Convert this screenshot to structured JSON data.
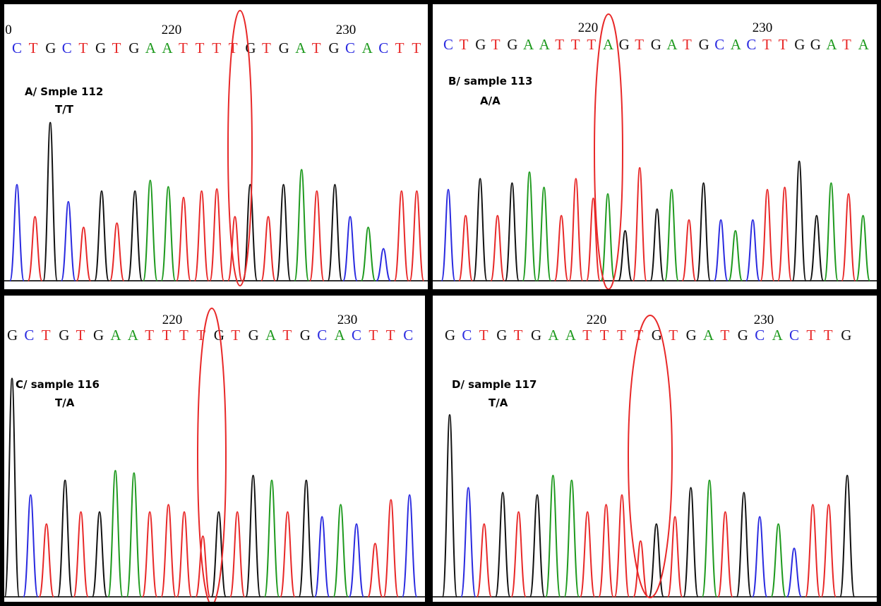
{
  "panels": [
    {
      "label": "A/ Smple 112",
      "genotype": "T/T",
      "positions": [
        "0",
        "220",
        "230"
      ],
      "sequence": [
        "C",
        "T",
        "G",
        "C",
        "T",
        "G",
        "T",
        "G",
        "A",
        "A",
        "T",
        "T",
        "T",
        "T",
        "G",
        "T",
        "G",
        "A",
        "T",
        "G",
        "C",
        "A",
        "C",
        "T",
        "T"
      ]
    },
    {
      "label": "B/ sample 113",
      "genotype": "A/A",
      "positions": [
        "220",
        "230"
      ],
      "sequence": [
        "C",
        "T",
        "G",
        "T",
        "G",
        "A",
        "A",
        "T",
        "T",
        "T",
        "A",
        "G",
        "T",
        "G",
        "A",
        "T",
        "G",
        "C",
        "A",
        "C",
        "T",
        "T",
        "G",
        "G",
        "A",
        "T",
        "A"
      ]
    },
    {
      "label": "C/ sample 116",
      "genotype": "T/A",
      "positions": [
        "220",
        "230"
      ],
      "sequence": [
        "G",
        "C",
        "T",
        "G",
        "T",
        "G",
        "A",
        "A",
        "T",
        "T",
        "T",
        "T",
        "G",
        "T",
        "G",
        "A",
        "T",
        "G",
        "C",
        "A",
        "C",
        "T",
        "T",
        "C"
      ]
    },
    {
      "label": "D/ sample 117",
      "genotype": "T/A",
      "positions": [
        "220",
        "230"
      ],
      "sequence": [
        "G",
        "C",
        "T",
        "G",
        "T",
        "G",
        "A",
        "A",
        "T",
        "T",
        "T",
        "T",
        "G",
        "T",
        "G",
        "A",
        "T",
        "G",
        "C",
        "A",
        "C",
        "T",
        "T",
        "G"
      ]
    }
  ]
}
